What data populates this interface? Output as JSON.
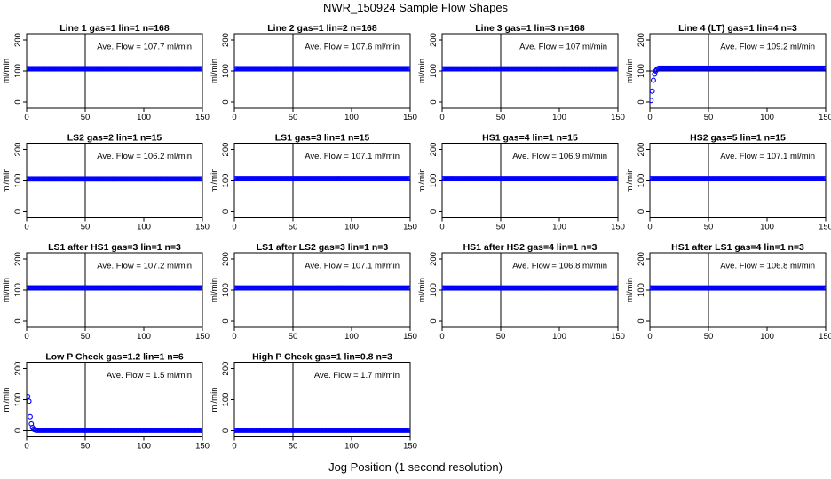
{
  "page": {
    "title": "NWR_150924  Sample Flow Shapes",
    "xlabel": "Jog Position (1 second resolution)"
  },
  "style": {
    "point_color": "#0000ff",
    "axis_color": "#000000",
    "hline_color": "#000000",
    "marker": "open-circle"
  },
  "chart_data": [
    {
      "type": "scatter",
      "title": "Line 1 gas=1 lin=1 n=168",
      "ylabel": "ml/min",
      "xlim": [
        0,
        150
      ],
      "ylim": [
        -20,
        220
      ],
      "xticks": [
        0,
        50,
        100,
        150
      ],
      "yticks": [
        0,
        100,
        200
      ],
      "vline": 50,
      "hline": 100,
      "annotation": "Ave. Flow = 107.7  ml/min",
      "series": [
        {
          "values": [
            [
              0,
              107.7
            ],
            [
              150,
              107.7
            ]
          ]
        }
      ]
    },
    {
      "type": "scatter",
      "title": "Line 2 gas=1 lin=2 n=168",
      "ylabel": "ml/min",
      "xlim": [
        0,
        150
      ],
      "ylim": [
        -20,
        220
      ],
      "xticks": [
        0,
        50,
        100,
        150
      ],
      "yticks": [
        0,
        100,
        200
      ],
      "vline": 50,
      "hline": 100,
      "annotation": "Ave. Flow = 107.6  ml/min",
      "series": [
        {
          "values": [
            [
              0,
              107.6
            ],
            [
              150,
              107.6
            ]
          ]
        }
      ]
    },
    {
      "type": "scatter",
      "title": "Line 3 gas=1 lin=3 n=168",
      "ylabel": "ml/min",
      "xlim": [
        0,
        150
      ],
      "ylim": [
        -20,
        220
      ],
      "xticks": [
        0,
        50,
        100,
        150
      ],
      "yticks": [
        0,
        100,
        200
      ],
      "vline": 50,
      "hline": 100,
      "annotation": "Ave. Flow = 107  ml/min",
      "series": [
        {
          "values": [
            [
              0,
              107
            ],
            [
              150,
              107
            ]
          ]
        }
      ]
    },
    {
      "type": "scatter",
      "title": "Line 4 (LT) gas=1 lin=4 n=3",
      "ylabel": "ml/min",
      "xlim": [
        0,
        150
      ],
      "ylim": [
        -20,
        220
      ],
      "xticks": [
        0,
        50,
        100,
        150
      ],
      "yticks": [
        0,
        100,
        200
      ],
      "vline": 50,
      "hline": 100,
      "annotation": "Ave. Flow = 109.2  ml/min",
      "series": [
        {
          "values": [
            [
              1,
              5
            ],
            [
              2,
              35
            ],
            [
              3,
              70
            ],
            [
              4,
              90
            ],
            [
              5,
              100
            ],
            [
              6,
              105
            ],
            [
              7,
              108
            ],
            [
              8,
              109.2
            ],
            [
              150,
              109.2
            ]
          ]
        }
      ]
    },
    {
      "type": "scatter",
      "title": "LS2 gas=2 lin=1 n=15",
      "ylabel": "ml/min",
      "xlim": [
        0,
        150
      ],
      "ylim": [
        -20,
        220
      ],
      "xticks": [
        0,
        50,
        100,
        150
      ],
      "yticks": [
        0,
        100,
        200
      ],
      "vline": 50,
      "hline": 100,
      "annotation": "Ave. Flow = 106.2  ml/min",
      "series": [
        {
          "values": [
            [
              0,
              106.2
            ],
            [
              150,
              106.2
            ]
          ]
        }
      ]
    },
    {
      "type": "scatter",
      "title": "LS1 gas=3 lin=1 n=15",
      "ylabel": "ml/min",
      "xlim": [
        0,
        150
      ],
      "ylim": [
        -20,
        220
      ],
      "xticks": [
        0,
        50,
        100,
        150
      ],
      "yticks": [
        0,
        100,
        200
      ],
      "vline": 50,
      "hline": 100,
      "annotation": "Ave. Flow = 107.1  ml/min",
      "series": [
        {
          "values": [
            [
              0,
              107.1
            ],
            [
              150,
              107.1
            ]
          ]
        }
      ]
    },
    {
      "type": "scatter",
      "title": "HS1 gas=4 lin=1 n=15",
      "ylabel": "ml/min",
      "xlim": [
        0,
        150
      ],
      "ylim": [
        -20,
        220
      ],
      "xticks": [
        0,
        50,
        100,
        150
      ],
      "yticks": [
        0,
        100,
        200
      ],
      "vline": 50,
      "hline": 100,
      "annotation": "Ave. Flow = 106.9  ml/min",
      "series": [
        {
          "values": [
            [
              0,
              106.9
            ],
            [
              150,
              106.9
            ]
          ]
        }
      ]
    },
    {
      "type": "scatter",
      "title": "HS2 gas=5 lin=1 n=15",
      "ylabel": "ml/min",
      "xlim": [
        0,
        150
      ],
      "ylim": [
        -20,
        220
      ],
      "xticks": [
        0,
        50,
        100,
        150
      ],
      "yticks": [
        0,
        100,
        200
      ],
      "vline": 50,
      "hline": 100,
      "annotation": "Ave. Flow = 107.1  ml/min",
      "series": [
        {
          "values": [
            [
              0,
              107.1
            ],
            [
              150,
              107.1
            ]
          ]
        }
      ]
    },
    {
      "type": "scatter",
      "title": "LS1 after HS1 gas=3 lin=1 n=3",
      "ylabel": "ml/min",
      "xlim": [
        0,
        150
      ],
      "ylim": [
        -20,
        220
      ],
      "xticks": [
        0,
        50,
        100,
        150
      ],
      "yticks": [
        0,
        100,
        200
      ],
      "vline": 50,
      "hline": 100,
      "annotation": "Ave. Flow = 107.2  ml/min",
      "series": [
        {
          "values": [
            [
              0,
              107.2
            ],
            [
              150,
              107.2
            ]
          ]
        }
      ]
    },
    {
      "type": "scatter",
      "title": "LS1 after LS2 gas=3 lin=1 n=3",
      "ylabel": "ml/min",
      "xlim": [
        0,
        150
      ],
      "ylim": [
        -20,
        220
      ],
      "xticks": [
        0,
        50,
        100,
        150
      ],
      "yticks": [
        0,
        100,
        200
      ],
      "vline": 50,
      "hline": 100,
      "annotation": "Ave. Flow = 107.1  ml/min",
      "series": [
        {
          "values": [
            [
              0,
              107.1
            ],
            [
              150,
              107.1
            ]
          ]
        }
      ]
    },
    {
      "type": "scatter",
      "title": "HS1 after HS2 gas=4 lin=1 n=3",
      "ylabel": "ml/min",
      "xlim": [
        0,
        150
      ],
      "ylim": [
        -20,
        220
      ],
      "xticks": [
        0,
        50,
        100,
        150
      ],
      "yticks": [
        0,
        100,
        200
      ],
      "vline": 50,
      "hline": 100,
      "annotation": "Ave. Flow = 106.8  ml/min",
      "series": [
        {
          "values": [
            [
              0,
              106.8
            ],
            [
              150,
              106.8
            ]
          ]
        }
      ]
    },
    {
      "type": "scatter",
      "title": "HS1 after LS1 gas=4 lin=1 n=3",
      "ylabel": "ml/min",
      "xlim": [
        0,
        150
      ],
      "ylim": [
        -20,
        220
      ],
      "xticks": [
        0,
        50,
        100,
        150
      ],
      "yticks": [
        0,
        100,
        200
      ],
      "vline": 50,
      "hline": 100,
      "annotation": "Ave. Flow = 106.8  ml/min",
      "series": [
        {
          "values": [
            [
              0,
              106.8
            ],
            [
              150,
              106.8
            ]
          ]
        }
      ]
    },
    {
      "type": "scatter",
      "title": "Low P Check gas=1.2 lin=1 n=6",
      "ylabel": "ml/min",
      "xlim": [
        0,
        150
      ],
      "ylim": [
        -20,
        220
      ],
      "xticks": [
        0,
        50,
        100,
        150
      ],
      "yticks": [
        0,
        100,
        200
      ],
      "vline": 50,
      "hline": 0,
      "annotation": "Ave. Flow = 1.5  ml/min",
      "series": [
        {
          "values": [
            [
              1,
              110
            ],
            [
              2,
              95
            ],
            [
              3,
              45
            ],
            [
              4,
              22
            ],
            [
              5,
              10
            ],
            [
              6,
              5
            ],
            [
              7,
              3
            ],
            [
              8,
              1.5
            ],
            [
              150,
              1.5
            ]
          ]
        }
      ]
    },
    {
      "type": "scatter",
      "title": "High P Check gas=1 lin=0.8 n=3",
      "ylabel": "ml/min",
      "xlim": [
        0,
        150
      ],
      "ylim": [
        -20,
        220
      ],
      "xticks": [
        0,
        50,
        100,
        150
      ],
      "yticks": [
        0,
        100,
        200
      ],
      "vline": 50,
      "hline": 0,
      "annotation": "Ave. Flow = 1.7  ml/min",
      "series": [
        {
          "values": [
            [
              0,
              1.7
            ],
            [
              150,
              1.7
            ]
          ]
        }
      ]
    }
  ]
}
